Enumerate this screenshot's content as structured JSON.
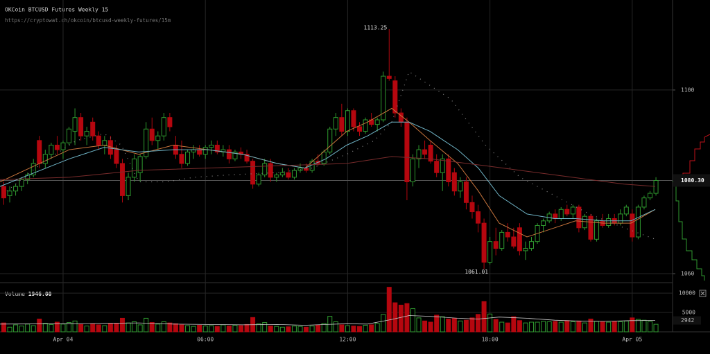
{
  "chart_data": {
    "type": "candlestick",
    "title": "OKCoin BTCUSD Futures Weekly 15",
    "subtitle": "https://cryptowat.ch/okcoin/btcusd-weekly-futures/15m",
    "volume_title": "Volume",
    "current_volume": {
      "value": 1946,
      "label": "1946.00"
    },
    "last": {
      "value": 1080.3,
      "label": "1080.30"
    },
    "max_label": 1113.25,
    "min_label": 1061.01,
    "volume_ma_marker": 2942,
    "up_color": "#2f9a2f",
    "down_color": "#b5070f",
    "xlim": [
      -2.66,
      25.7
    ],
    "xticks": [
      {
        "value": 0,
        "label": "Apr 04"
      },
      {
        "value": 6,
        "label": "06:00"
      },
      {
        "value": 12,
        "label": "12:00"
      },
      {
        "value": 18,
        "label": "18:00"
      },
      {
        "value": 24,
        "label": "Apr 05"
      }
    ],
    "ylim": [
      1058.5,
      1119.6
    ],
    "yticks": [
      1060,
      1100
    ],
    "vlim": [
      0,
      11800
    ],
    "vticks": [
      5000,
      10000
    ],
    "grid": true,
    "x": [
      -2.5,
      -2.25,
      -2,
      -1.75,
      -1.5,
      -1.25,
      -1,
      -0.75,
      -0.5,
      -0.25,
      0,
      0.25,
      0.5,
      0.75,
      1,
      1.25,
      1.5,
      1.75,
      2,
      2.25,
      2.5,
      2.75,
      3,
      3.25,
      3.5,
      3.75,
      4,
      4.25,
      4.5,
      4.75,
      5,
      5.25,
      5.5,
      5.75,
      6,
      6.25,
      6.5,
      6.75,
      7,
      7.25,
      7.5,
      7.75,
      8,
      8.25,
      8.5,
      8.75,
      9,
      9.25,
      9.5,
      9.75,
      10,
      10.25,
      10.5,
      10.75,
      11,
      11.25,
      11.5,
      11.75,
      12,
      12.25,
      12.5,
      12.75,
      13,
      13.25,
      13.5,
      13.75,
      14,
      14.25,
      14.5,
      14.75,
      15,
      15.25,
      15.5,
      15.75,
      16,
      16.25,
      16.5,
      16.75,
      17,
      17.25,
      17.5,
      17.75,
      18,
      18.25,
      18.5,
      18.75,
      19,
      19.25,
      19.5,
      19.75,
      20,
      20.25,
      20.5,
      20.75,
      21,
      21.25,
      21.5,
      21.75,
      22,
      22.25,
      22.5,
      22.75,
      23,
      23.25,
      23.5,
      23.75,
      24,
      24.25,
      24.5,
      24.75,
      25
    ],
    "open": [
      1079,
      1077,
      1078,
      1079,
      1080.5,
      1081.5,
      1089,
      1084,
      1086,
      1088,
      1087,
      1088.5,
      1091,
      1094,
      1090,
      1093,
      1090,
      1088,
      1089,
      1087,
      1084,
      1077,
      1081,
      1082,
      1085.5,
      1091.5,
      1089,
      1090,
      1094,
      1088,
      1086,
      1084,
      1086.5,
      1087,
      1086,
      1087.5,
      1088,
      1086.5,
      1087,
      1085,
      1086.5,
      1086,
      1084.5,
      1079.5,
      1081.5,
      1084,
      1081,
      1081.5,
      1082,
      1081,
      1082.5,
      1083,
      1082.5,
      1084.5,
      1084,
      1086.5,
      1091.5,
      1094,
      1091,
      1095.5,
      1092,
      1091,
      1093.5,
      1092.5,
      1093.5,
      1103,
      1102,
      1095,
      1093,
      1080,
      1085,
      1087,
      1088,
      1084.5,
      1082,
      1085,
      1082,
      1078,
      1080,
      1075.5,
      1073.5,
      1071,
      1062.5,
      1067,
      1065.5,
      1069,
      1068,
      1070,
      1065,
      1065.5,
      1067,
      1070.5,
      1071.5,
      1073,
      1072,
      1074,
      1073,
      1074.5,
      1070,
      1072.5,
      1067.5,
      1071.5,
      1070.5,
      1072,
      1071,
      1073,
      1073,
      1068,
      1074.5,
      1076.5,
      1077.5
    ],
    "high": [
      1080,
      1079,
      1079.5,
      1081,
      1082,
      1085,
      1090,
      1087,
      1088.5,
      1090,
      1089,
      1092,
      1096,
      1095,
      1092,
      1094,
      1091,
      1090,
      1090,
      1088,
      1085,
      1082,
      1086,
      1086,
      1093,
      1094,
      1091,
      1095,
      1095,
      1090,
      1089,
      1087,
      1088,
      1088,
      1088,
      1089,
      1089,
      1088,
      1088,
      1087,
      1087.5,
      1087,
      1085,
      1082,
      1085,
      1085,
      1082,
      1083,
      1083,
      1083,
      1084,
      1084,
      1085,
      1086,
      1087,
      1092,
      1095,
      1097,
      1096,
      1096,
      1093,
      1094,
      1095,
      1094,
      1104,
      1113.25,
      1103,
      1096,
      1094,
      1086,
      1088,
      1089,
      1089,
      1086,
      1086,
      1086,
      1083,
      1081,
      1081,
      1077,
      1075,
      1072,
      1068,
      1070,
      1069.5,
      1071,
      1070,
      1071,
      1067,
      1068,
      1071,
      1072,
      1073.5,
      1074,
      1074.5,
      1075,
      1075,
      1075,
      1073,
      1073,
      1072,
      1073,
      1073,
      1073,
      1074,
      1075,
      1074,
      1075,
      1077,
      1078,
      1081
    ],
    "low": [
      1075,
      1075.5,
      1077,
      1078,
      1079.5,
      1081,
      1083,
      1083,
      1085,
      1086,
      1085,
      1088,
      1088,
      1089,
      1088,
      1089,
      1087,
      1086,
      1085,
      1083,
      1075.5,
      1076,
      1080,
      1080,
      1085,
      1088,
      1087,
      1089,
      1091,
      1085,
      1083,
      1083.5,
      1085,
      1085.5,
      1085,
      1086,
      1086,
      1085.5,
      1084,
      1084.5,
      1085,
      1084,
      1078.5,
      1079,
      1081,
      1080,
      1080,
      1081,
      1080.5,
      1080.5,
      1082,
      1082,
      1082,
      1083.5,
      1083.5,
      1086,
      1090,
      1090,
      1090,
      1091,
      1090,
      1090.5,
      1092,
      1091,
      1093,
      1102,
      1094,
      1092,
      1076,
      1079,
      1083,
      1085,
      1084,
      1081,
      1078,
      1079,
      1077,
      1076.5,
      1074,
      1072,
      1069,
      1061.01,
      1062,
      1064,
      1065,
      1067,
      1065.5,
      1064,
      1063,
      1065,
      1066.5,
      1069,
      1071,
      1071,
      1071.5,
      1072.5,
      1072,
      1069,
      1069.5,
      1067,
      1067,
      1070,
      1070,
      1070.5,
      1070.5,
      1072.5,
      1067,
      1067.5,
      1074,
      1076,
      1077
    ],
    "close": [
      1076.5,
      1078,
      1079,
      1080.5,
      1081.5,
      1084,
      1084,
      1086,
      1088,
      1087,
      1088.5,
      1091.5,
      1094,
      1090,
      1091,
      1090,
      1088,
      1089,
      1086,
      1084,
      1077,
      1081,
      1085,
      1085.5,
      1091.5,
      1089,
      1090,
      1094,
      1092,
      1086,
      1084,
      1086.5,
      1087,
      1086,
      1087.5,
      1088,
      1086.5,
      1087,
      1085,
      1086.5,
      1086,
      1084.5,
      1079.5,
      1081.5,
      1084,
      1081,
      1081.5,
      1082,
      1081,
      1082.5,
      1083,
      1082.5,
      1084.5,
      1084,
      1086.5,
      1091.5,
      1094,
      1091,
      1095.5,
      1092,
      1091,
      1093.5,
      1092.5,
      1093.5,
      1103,
      1102.5,
      1095,
      1093,
      1080,
      1085,
      1087,
      1086,
      1084.5,
      1082,
      1085,
      1080,
      1078,
      1080,
      1075.5,
      1073.5,
      1071,
      1062.5,
      1067,
      1065.5,
      1069,
      1068,
      1066,
      1065,
      1065.5,
      1067,
      1070.5,
      1071.5,
      1073,
      1072,
      1074,
      1073,
      1074.5,
      1070,
      1072.5,
      1067.5,
      1071.5,
      1070.5,
      1072,
      1071,
      1073,
      1074.5,
      1068,
      1074.5,
      1076.5,
      1077.5,
      1080.3
    ],
    "volume": [
      2300,
      1200,
      1800,
      1500,
      2000,
      1600,
      3300,
      2200,
      1900,
      2500,
      2000,
      2400,
      2800,
      1900,
      1500,
      2000,
      1800,
      1600,
      2100,
      2200,
      3500,
      2300,
      2600,
      1800,
      3500,
      2400,
      2000,
      2600,
      2300,
      2100,
      1800,
      1600,
      1400,
      1700,
      1500,
      1600,
      1400,
      1800,
      1500,
      1700,
      1600,
      1900,
      3700,
      2100,
      2400,
      1500,
      1400,
      1200,
      1300,
      1500,
      1400,
      1200,
      1500,
      1800,
      2200,
      4000,
      2600,
      1800,
      1600,
      1500,
      1400,
      1700,
      1800,
      2200,
      4500,
      11500,
      7500,
      6900,
      7300,
      6000,
      3600,
      2800,
      2500,
      4300,
      3900,
      3300,
      3500,
      2800,
      3000,
      3600,
      4500,
      7800,
      4600,
      3200,
      2500,
      2300,
      3900,
      2900,
      2300,
      2500,
      2500,
      2700,
      2600,
      2700,
      2500,
      2900,
      2600,
      2800,
      2300,
      3300,
      2700,
      2600,
      2500,
      2700,
      2600,
      2800,
      3600,
      3200,
      3000,
      2700,
      1946
    ],
    "lines": [
      {
        "color": "#c7743c",
        "style": "solid",
        "x": [
          -2.66,
          0.26,
          1.73,
          3.19,
          4.65,
          6.11,
          7.57,
          9.03,
          10.2,
          11.08,
          11.96,
          12.84,
          13.86,
          14.59,
          15.47,
          16.64,
          17.51,
          18.39,
          19.56,
          20.73,
          21.61,
          22.78,
          23.95,
          24.97
        ],
        "values": [
          1080,
          1087,
          1088,
          1086,
          1088,
          1087,
          1086,
          1084,
          1083,
          1087,
          1091,
          1093,
          1096,
          1093,
          1089,
          1084,
          1078,
          1071,
          1068,
          1070,
          1071.5,
          1071,
          1071,
          1074
        ]
      },
      {
        "color": "#6fb4c6",
        "style": "solid",
        "x": [
          -2.66,
          0.26,
          1.73,
          3.19,
          4.65,
          6.11,
          7.57,
          9.03,
          10.2,
          11.08,
          11.96,
          12.84,
          13.86,
          14.59,
          15.47,
          16.64,
          17.51,
          18.39,
          19.56,
          20.73,
          21.61,
          22.78,
          23.95,
          24.97
        ],
        "values": [
          1079,
          1085,
          1087.5,
          1086.5,
          1087,
          1087,
          1086,
          1084,
          1083,
          1085,
          1088,
          1090,
          1093,
          1093,
          1091,
          1087,
          1083,
          1077,
          1073,
          1072,
          1072,
          1071.5,
          1071.5,
          1074
        ]
      },
      {
        "color": "#7a2c2c",
        "style": "solid",
        "x": [
          -2.66,
          0.26,
          3.19,
          6.11,
          9.03,
          11.96,
          13.86,
          15.47,
          17.81,
          20.73,
          23.65,
          24.97
        ],
        "values": [
          1080.5,
          1081,
          1082.5,
          1083,
          1083.5,
          1084,
          1085.5,
          1085,
          1083.5,
          1081.5,
          1079.5,
          1079
        ]
      },
      {
        "color": "#8a8a8a",
        "style": "dotted",
        "x": [
          -2.37,
          -0.91,
          0.56,
          1.73,
          2.46,
          3.19,
          4.36,
          5.53,
          6.99,
          9.03,
          10.5,
          11.96,
          13.13,
          13.86,
          14.59,
          16.35,
          17.81,
          19.27,
          20.73,
          22.19,
          23.65,
          24.97
        ],
        "values": [
          1078,
          1084,
          1089,
          1090.5,
          1088,
          1080,
          1080,
          1081,
          1081.5,
          1082,
          1083,
          1086,
          1089,
          1093,
          1104,
          1098,
          1088,
          1081,
          1077,
          1073,
          1070,
          1067.5
        ]
      }
    ],
    "volume_line": {
      "color": "#cfcfcf",
      "x": [
        -2.66,
        0.26,
        1.73,
        3.19,
        4.65,
        6.11,
        7.57,
        9.03,
        10.2,
        11.08,
        11.96,
        12.84,
        13.86,
        14.59,
        15.47,
        16.64,
        17.51,
        18.39,
        19.56,
        20.73,
        21.61,
        22.78,
        23.95,
        24.97
      ],
      "values": [
        2000,
        2100,
        2200,
        2300,
        2000,
        1900,
        1800,
        1900,
        1700,
        1900,
        2100,
        2000,
        3200,
        4200,
        4000,
        3500,
        3300,
        3800,
        3500,
        3000,
        2800,
        2700,
        2900,
        2942
      ]
    }
  }
}
